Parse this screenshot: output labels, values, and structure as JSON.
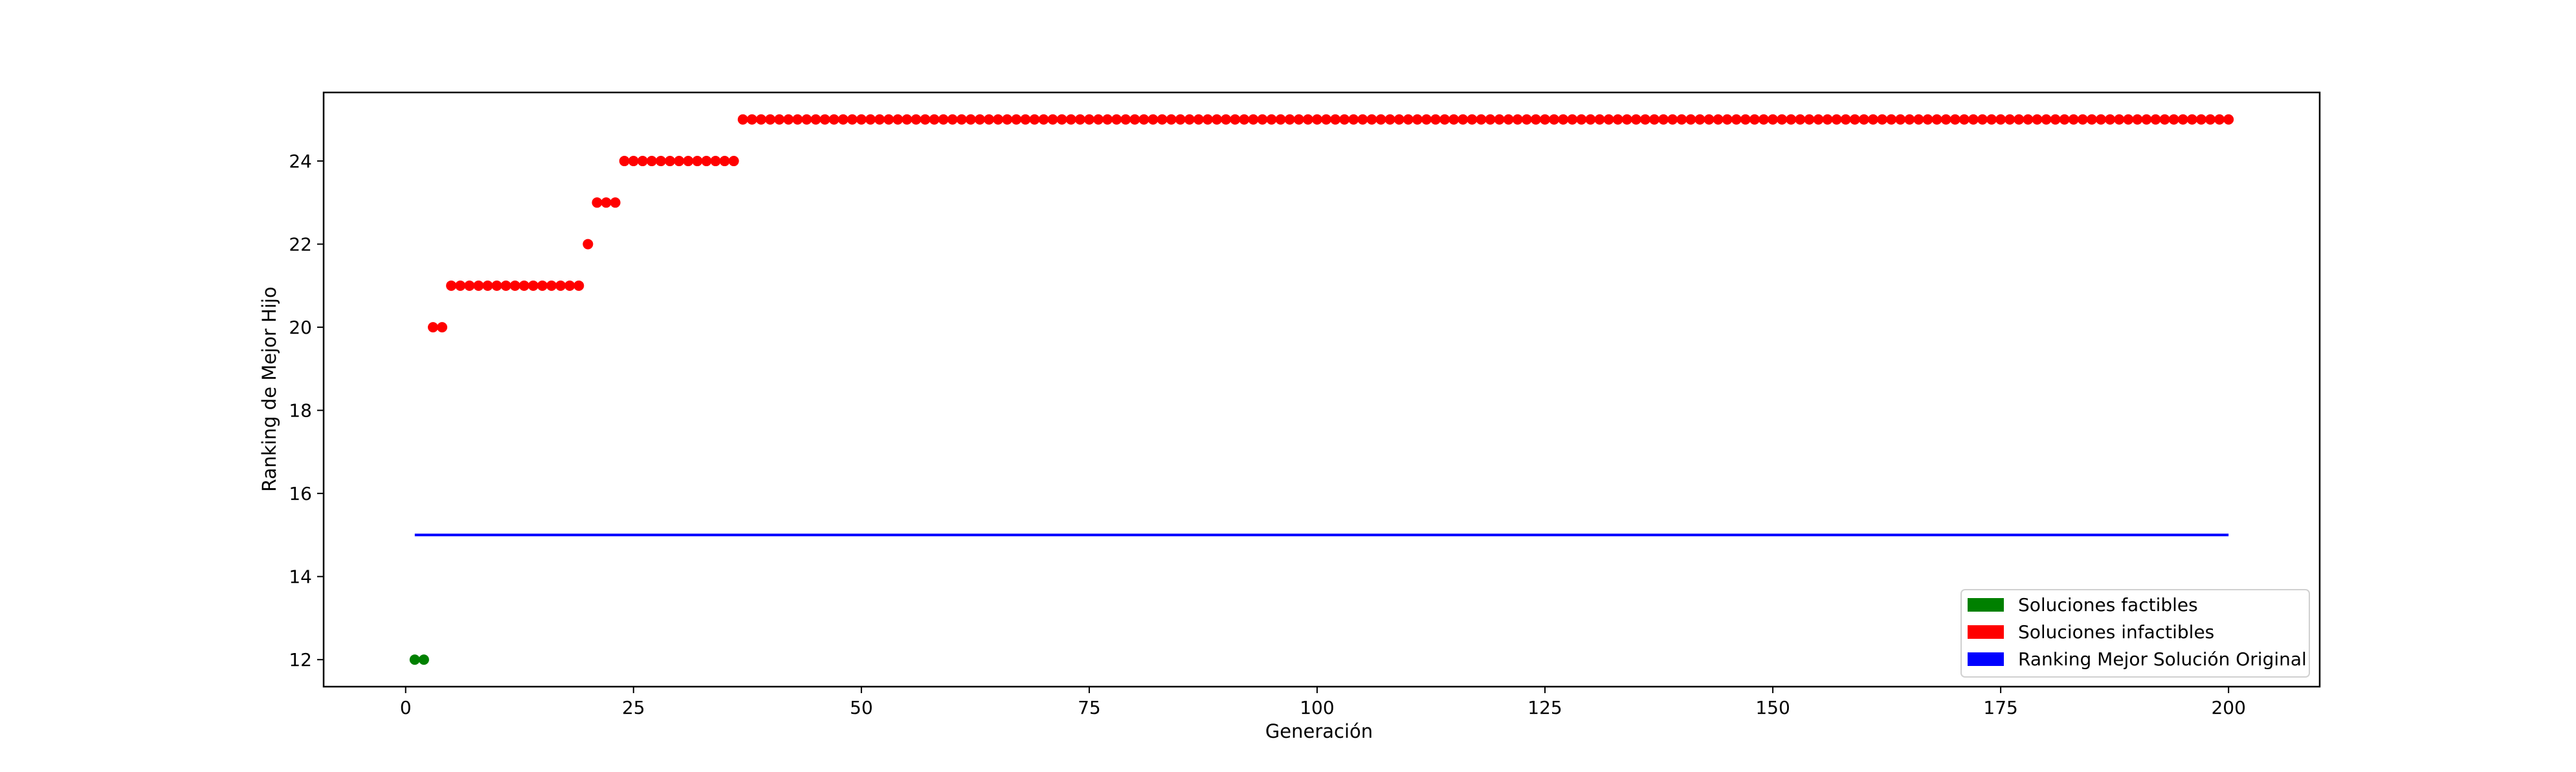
{
  "chart_data": {
    "type": "scatter",
    "xlabel": "Generación",
    "ylabel": "Ranking de Mejor Hijo",
    "xlim": [
      -9,
      210
    ],
    "ylim": [
      11.35,
      25.65
    ],
    "xticks": [
      0,
      25,
      50,
      75,
      100,
      125,
      150,
      175,
      200
    ],
    "yticks": [
      12,
      14,
      16,
      18,
      20,
      22,
      24
    ],
    "grid": false,
    "legend_position": "lower-right",
    "colors": {
      "factible": "#008000",
      "infactible": "#ff0000",
      "original": "#0000ff"
    },
    "series": [
      {
        "name": "Soluciones factibles",
        "kind": "scatter",
        "color": "#008000",
        "points": [
          [
            1,
            12
          ],
          [
            2,
            12
          ]
        ]
      },
      {
        "name": "Soluciones infactibles",
        "kind": "scatter",
        "color": "#ff0000",
        "points": [
          [
            3,
            20
          ],
          [
            4,
            20
          ],
          [
            5,
            21
          ],
          [
            6,
            21
          ],
          [
            7,
            21
          ],
          [
            8,
            21
          ],
          [
            9,
            21
          ],
          [
            10,
            21
          ],
          [
            11,
            21
          ],
          [
            12,
            21
          ],
          [
            13,
            21
          ],
          [
            14,
            21
          ],
          [
            15,
            21
          ],
          [
            16,
            21
          ],
          [
            17,
            21
          ],
          [
            18,
            21
          ],
          [
            19,
            21
          ],
          [
            20,
            22
          ],
          [
            21,
            23
          ],
          [
            22,
            23
          ],
          [
            23,
            23
          ],
          [
            24,
            24
          ],
          [
            25,
            24
          ],
          [
            26,
            24
          ],
          [
            27,
            24
          ],
          [
            28,
            24
          ],
          [
            29,
            24
          ],
          [
            30,
            24
          ],
          [
            31,
            24
          ],
          [
            32,
            24
          ],
          [
            33,
            24
          ],
          [
            34,
            24
          ],
          [
            35,
            24
          ],
          [
            36,
            24
          ]
        ],
        "constant_run": {
          "x_from": 37,
          "x_to": 200,
          "y": 25
        }
      },
      {
        "name": "Ranking Mejor Solución Original",
        "kind": "line",
        "color": "#0000ff",
        "points": [
          [
            1,
            15
          ],
          [
            200,
            15
          ]
        ]
      }
    ],
    "legend": [
      "Soluciones factibles",
      "Soluciones infactibles",
      "Ranking Mejor Solución Original"
    ]
  }
}
